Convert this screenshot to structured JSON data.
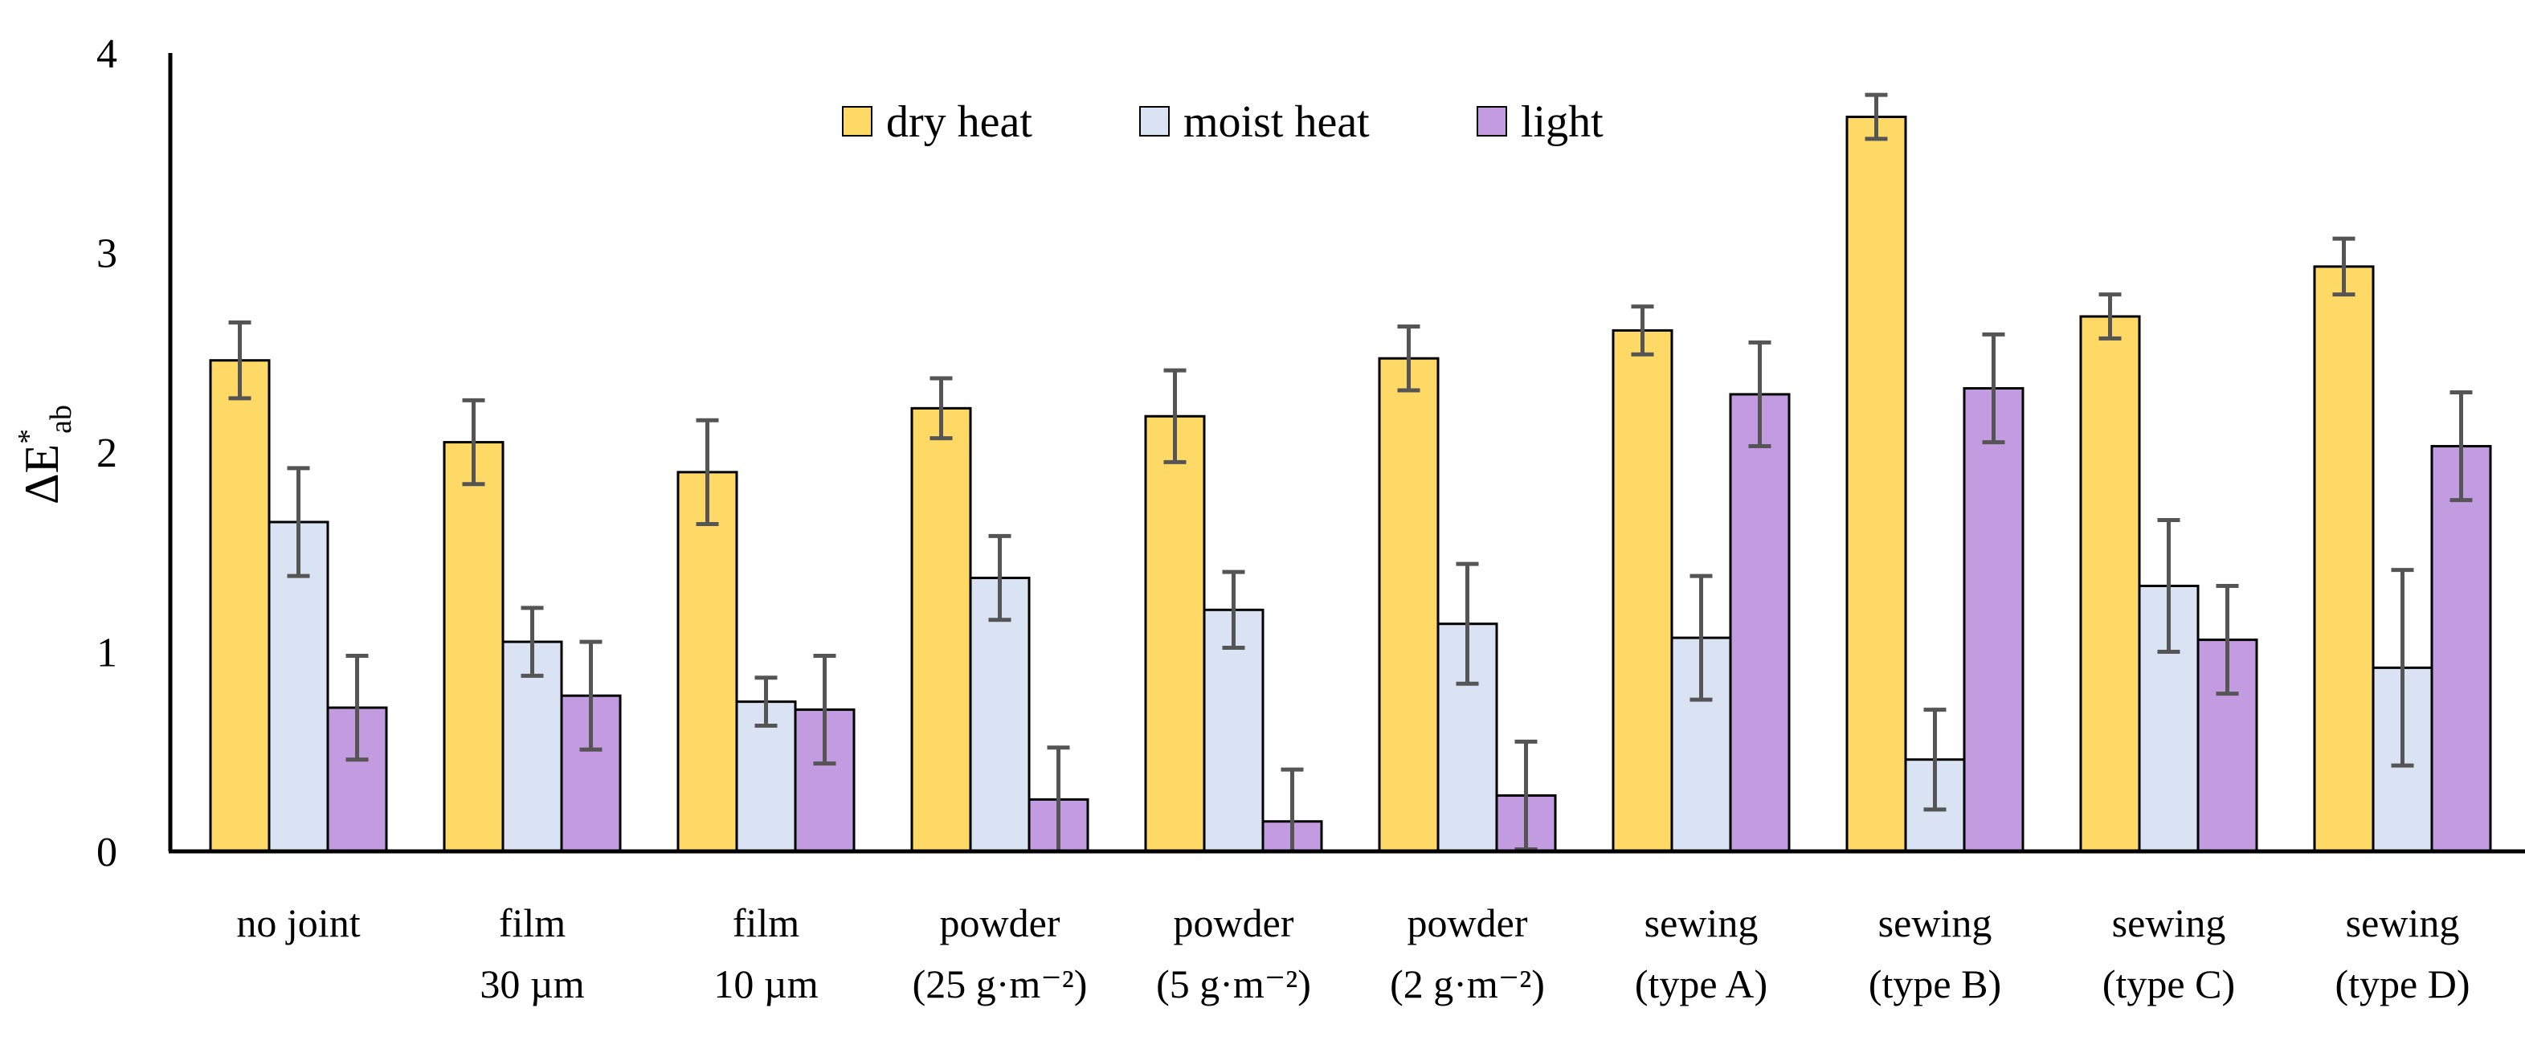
{
  "chart_data": {
    "type": "bar",
    "title": "",
    "xlabel": "",
    "ylabel": {
      "main": "ΔE",
      "sup": "*",
      "sub": "ab"
    },
    "ylim": [
      0,
      4
    ],
    "yticks": [
      "0",
      "1",
      "2",
      "3",
      "4"
    ],
    "ytick_values": [
      0,
      1,
      2,
      3,
      4
    ],
    "grid": false,
    "legend_position": "top-center",
    "categories": [
      [
        "no joint",
        ""
      ],
      [
        "film",
        "30 µm"
      ],
      [
        "film",
        "10 µm"
      ],
      [
        "powder",
        "(25 g·m⁻²)"
      ],
      [
        "powder",
        "(5 g·m⁻²)"
      ],
      [
        "powder",
        "(2 g·m⁻²)"
      ],
      [
        "sewing",
        "(type A)"
      ],
      [
        "sewing",
        "(type B)"
      ],
      [
        "sewing",
        "(type C)"
      ],
      [
        "sewing",
        "(type D)"
      ]
    ],
    "series": [
      {
        "name": "dry heat",
        "color": "#FFD966",
        "values": [
          2.46,
          2.05,
          1.9,
          2.22,
          2.18,
          2.47,
          2.61,
          3.68,
          2.68,
          2.93
        ],
        "errors": [
          0.19,
          0.21,
          0.26,
          0.15,
          0.23,
          0.16,
          0.12,
          0.11,
          0.11,
          0.14
        ]
      },
      {
        "name": "moist heat",
        "color": "#DAE3F3",
        "values": [
          1.65,
          1.05,
          0.75,
          1.37,
          1.21,
          1.14,
          1.07,
          0.46,
          1.33,
          0.92
        ],
        "errors": [
          0.27,
          0.17,
          0.12,
          0.21,
          0.19,
          0.3,
          0.31,
          0.25,
          0.33,
          0.49
        ]
      },
      {
        "name": "light",
        "color": "#C39BE0",
        "values": [
          0.72,
          0.78,
          0.71,
          0.26,
          0.15,
          0.28,
          2.29,
          2.32,
          1.06,
          2.03
        ],
        "errors": [
          0.26,
          0.27,
          0.27,
          0.26,
          0.26,
          0.27,
          0.26,
          0.27,
          0.27,
          0.27
        ]
      }
    ]
  }
}
